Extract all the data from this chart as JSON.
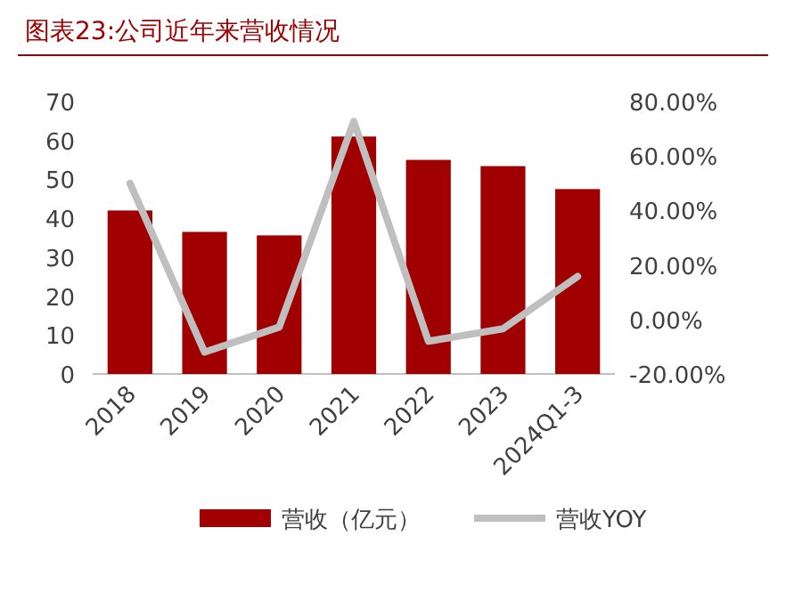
{
  "chart_data": {
    "type": "bar",
    "title": "图表23:公司近年来营收情况",
    "categories": [
      "2018",
      "2019",
      "2020",
      "2021",
      "2022",
      "2023",
      "2024Q1-3"
    ],
    "series": [
      {
        "name": "营收（亿元）",
        "color": "#a00000",
        "values": [
          42,
          36.5,
          35.6,
          61,
          55,
          53.4,
          47.5
        ]
      },
      {
        "name": "营收YOY",
        "type": "line",
        "axis": "y2",
        "color": "#bfbfbf",
        "values": [
          50,
          -12,
          -2.8,
          72.7,
          -8,
          -3.4,
          15.8
        ]
      }
    ],
    "ylim": [
      0,
      70
    ],
    "yticks": [
      0,
      10,
      20,
      30,
      40,
      50,
      60,
      70
    ],
    "y2lim": [
      -20,
      80
    ],
    "y2ticks": [
      {
        "value": -20,
        "label": "-20.00%"
      },
      {
        "value": 0,
        "label": "0.00%"
      },
      {
        "value": 20,
        "label": "20.00%"
      },
      {
        "value": 40,
        "label": "40.00%"
      },
      {
        "value": 60,
        "label": "60.00%"
      },
      {
        "value": 80,
        "label": "80.00%"
      }
    ],
    "legend": "bottom"
  }
}
